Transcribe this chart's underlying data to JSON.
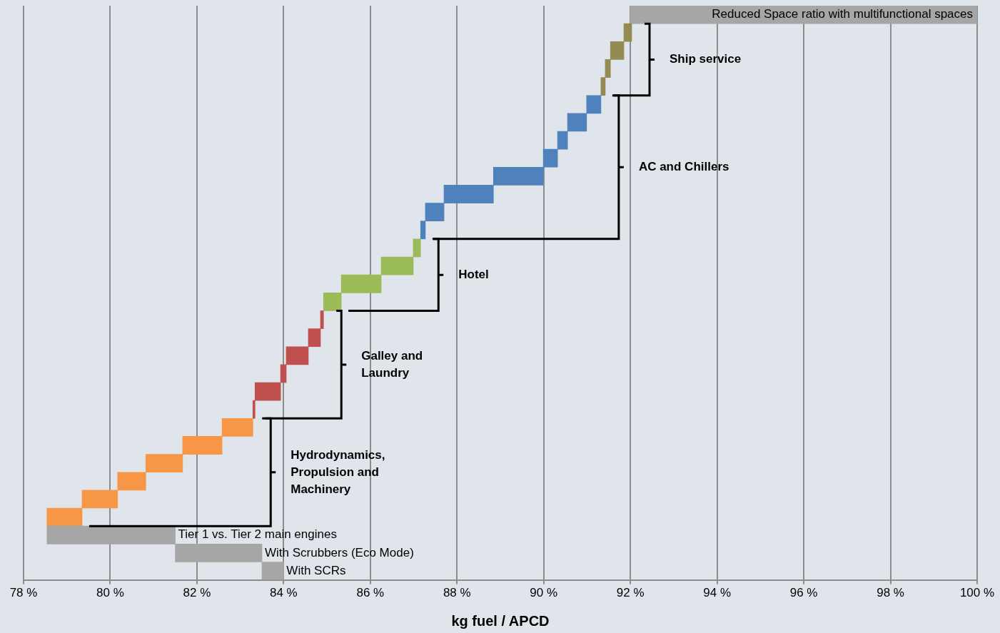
{
  "chart_data": {
    "type": "bar",
    "orientation": "horizontal",
    "xlabel": "kg fuel / APCD",
    "categories": [
      "Reduced Space ratio with multifunctional spaces",
      null,
      null,
      null,
      null,
      null,
      null,
      null,
      null,
      null,
      null,
      null,
      null,
      null,
      null,
      null,
      null,
      null,
      null,
      null,
      null,
      null,
      null,
      null,
      null,
      null,
      null,
      null,
      null,
      "Tier 1 vs. Tier 2 main engines",
      "With Scrubbers (Eco Mode)",
      "With SCRs"
    ],
    "base": [
      92.0,
      91.85,
      91.54,
      91.42,
      91.32,
      90.99,
      90.55,
      90.32,
      89.99,
      88.84,
      87.7,
      87.27,
      87.16,
      86.99,
      86.25,
      85.33,
      84.92,
      84.85,
      84.57,
      84.06,
      83.93,
      83.34,
      83.29,
      82.58,
      81.67,
      80.82,
      80.17,
      79.35,
      78.54,
      78.54,
      81.5,
      83.5
    ],
    "values": [
      8.0,
      0.18,
      0.31,
      0.12,
      0.1,
      0.33,
      0.44,
      0.23,
      0.33,
      1.15,
      1.14,
      0.43,
      0.11,
      0.17,
      0.74,
      0.92,
      0.41,
      0.07,
      0.28,
      0.51,
      0.13,
      0.59,
      0.05,
      0.71,
      0.91,
      0.85,
      0.65,
      0.82,
      0.81,
      2.96,
      2.0,
      0.5
    ],
    "colors": [
      "#a6a6a6",
      "#948a54",
      "#948a54",
      "#948a54",
      "#948a54",
      "#4f81bd",
      "#4f81bd",
      "#4f81bd",
      "#4f81bd",
      "#4f81bd",
      "#4f81bd",
      "#4f81bd",
      "#4f81bd",
      "#9bbb59",
      "#9bbb59",
      "#9bbb59",
      "#9bbb59",
      "#c0504d",
      "#c0504d",
      "#c0504d",
      "#c0504d",
      "#c0504d",
      "#c0504d",
      "#f79646",
      "#f79646",
      "#f79646",
      "#f79646",
      "#f79646",
      "#f79646",
      "#a6a6a6",
      "#a6a6a6",
      "#a6a6a6"
    ],
    "xlim": [
      78,
      100
    ],
    "xticks": [
      {
        "value": 78,
        "label": "78 %"
      },
      {
        "value": 80,
        "label": "80 %"
      },
      {
        "value": 82,
        "label": "82 %"
      },
      {
        "value": 84,
        "label": "84 %"
      },
      {
        "value": 86,
        "label": "86 %"
      },
      {
        "value": 88,
        "label": "88 %"
      },
      {
        "value": 90,
        "label": "90 %"
      },
      {
        "value": 92,
        "label": "92 %"
      },
      {
        "value": 94,
        "label": "94 %"
      },
      {
        "value": 96,
        "label": "96 %"
      },
      {
        "value": 98,
        "label": "98 %"
      },
      {
        "value": 100,
        "label": "100 %"
      }
    ],
    "grid": "x",
    "tick_labels": "x",
    "legend": false,
    "annotations": [
      "Ship service",
      "AC and Chillers",
      "Hotel",
      "Galley and Laundry",
      "Hydrodynamics, Propulsion and Machinery"
    ]
  }
}
